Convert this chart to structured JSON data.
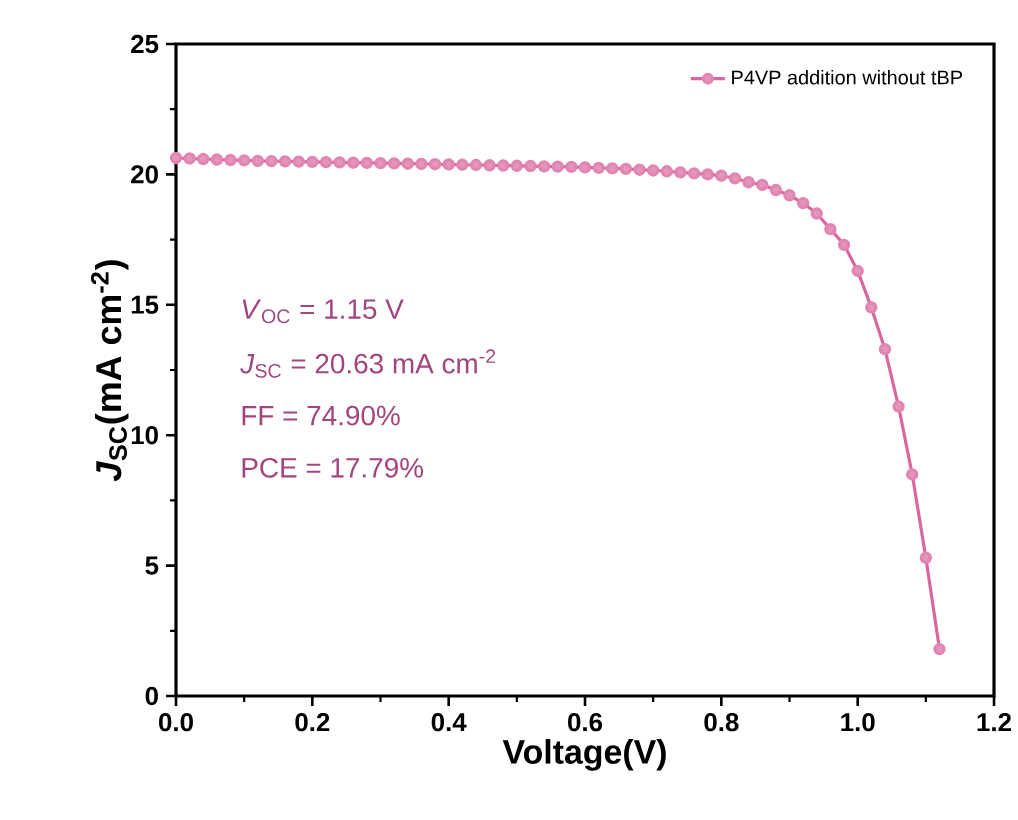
{
  "chart_data": {
    "type": "line",
    "xlabel": "Voltage(V)",
    "ylabel": "*J*$_{SC}$(mA cm$^{-2}$)",
    "x": [
      0.0,
      0.02,
      0.04,
      0.06,
      0.08,
      0.1,
      0.12,
      0.14,
      0.16,
      0.18,
      0.2,
      0.22,
      0.24,
      0.26,
      0.28,
      0.3,
      0.32,
      0.34,
      0.36,
      0.38,
      0.4,
      0.42,
      0.44,
      0.46,
      0.48,
      0.5,
      0.52,
      0.54,
      0.56,
      0.58,
      0.6,
      0.62,
      0.64,
      0.66,
      0.68,
      0.7,
      0.72,
      0.74,
      0.76,
      0.78,
      0.8,
      0.82,
      0.84,
      0.86,
      0.88,
      0.9,
      0.92,
      0.94,
      0.96,
      0.98,
      1.0,
      1.02,
      1.04,
      1.06,
      1.08,
      1.1,
      1.12
    ],
    "series": [
      {
        "name": "P4VP addition without tBP",
        "color": "#d9679f",
        "values": [
          20.63,
          20.61,
          20.59,
          20.57,
          20.55,
          20.54,
          20.52,
          20.51,
          20.5,
          20.49,
          20.48,
          20.47,
          20.46,
          20.45,
          20.44,
          20.43,
          20.42,
          20.41,
          20.4,
          20.39,
          20.38,
          20.37,
          20.36,
          20.35,
          20.34,
          20.33,
          20.32,
          20.31,
          20.3,
          20.29,
          20.27,
          20.25,
          20.23,
          20.21,
          20.18,
          20.15,
          20.12,
          20.08,
          20.04,
          20.0,
          19.95,
          19.85,
          19.7,
          19.6,
          19.4,
          19.2,
          18.9,
          18.5,
          17.9,
          17.3,
          16.3,
          14.9,
          13.3,
          11.1,
          8.5,
          5.3,
          1.8
        ]
      }
    ],
    "marker": "circle",
    "legend": "top right",
    "xlim": [
      0,
      1.2
    ],
    "ylim": [
      0,
      25
    ],
    "xticks": [
      {
        "value": 0,
        "label": "0.0"
      },
      {
        "value": 0.2,
        "label": "0.2"
      },
      {
        "value": 0.4,
        "label": "0.4"
      },
      {
        "value": 0.6,
        "label": "0.6"
      },
      {
        "value": 0.8,
        "label": "0.8"
      },
      {
        "value": 1.0,
        "label": "1.0"
      },
      {
        "value": 1.2,
        "label": "1.2"
      }
    ],
    "yticks": [
      0,
      5,
      10,
      15,
      20,
      25
    ],
    "annotations": [
      "*V*$_{OC}$ = 1.15 V",
      "*J*$_{SC}$ = 20.63 mA cm$^{-2}$",
      "FF = 74.90%",
      "PCE = 17.79%"
    ]
  }
}
